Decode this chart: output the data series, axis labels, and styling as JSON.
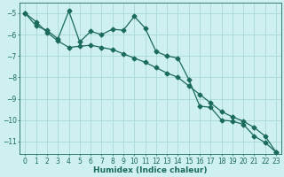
{
  "xlabel": "Humidex (Indice chaleur)",
  "background_color": "#cff0f0",
  "grid_color": "#aad8d8",
  "line_color": "#1a6b5a",
  "x_data": [
    0,
    1,
    2,
    3,
    4,
    5,
    6,
    7,
    8,
    9,
    10,
    11,
    12,
    13,
    14,
    15,
    16,
    17,
    18,
    19,
    20,
    21,
    22,
    23
  ],
  "y_jagged": [
    -5.0,
    -5.6,
    -5.8,
    -6.2,
    -4.9,
    -6.35,
    -5.85,
    -6.0,
    -5.75,
    -5.8,
    -5.15,
    -5.7,
    -6.8,
    -7.0,
    -7.1,
    -8.1,
    -9.35,
    -9.4,
    -10.0,
    -10.05,
    -10.2,
    -10.75,
    -11.05,
    -11.5
  ],
  "y_smooth": [
    -5.0,
    -5.4,
    -5.9,
    -6.3,
    -6.6,
    -6.55,
    -6.5,
    -6.6,
    -6.7,
    -6.9,
    -7.1,
    -7.3,
    -7.55,
    -7.8,
    -8.0,
    -8.4,
    -8.8,
    -9.2,
    -9.6,
    -9.85,
    -10.05,
    -10.35,
    -10.75,
    -11.5
  ],
  "ylim": [
    -11.6,
    -4.5
  ],
  "xlim": [
    -0.5,
    23.5
  ],
  "yticks": [
    -5,
    -6,
    -7,
    -8,
    -9,
    -10,
    -11
  ],
  "xticks": [
    0,
    1,
    2,
    3,
    4,
    5,
    6,
    7,
    8,
    9,
    10,
    11,
    12,
    13,
    14,
    15,
    16,
    17,
    18,
    19,
    20,
    21,
    22,
    23
  ],
  "markersize": 2.5,
  "linewidth": 0.9,
  "label_fontsize": 6.5,
  "tick_fontsize": 5.5
}
